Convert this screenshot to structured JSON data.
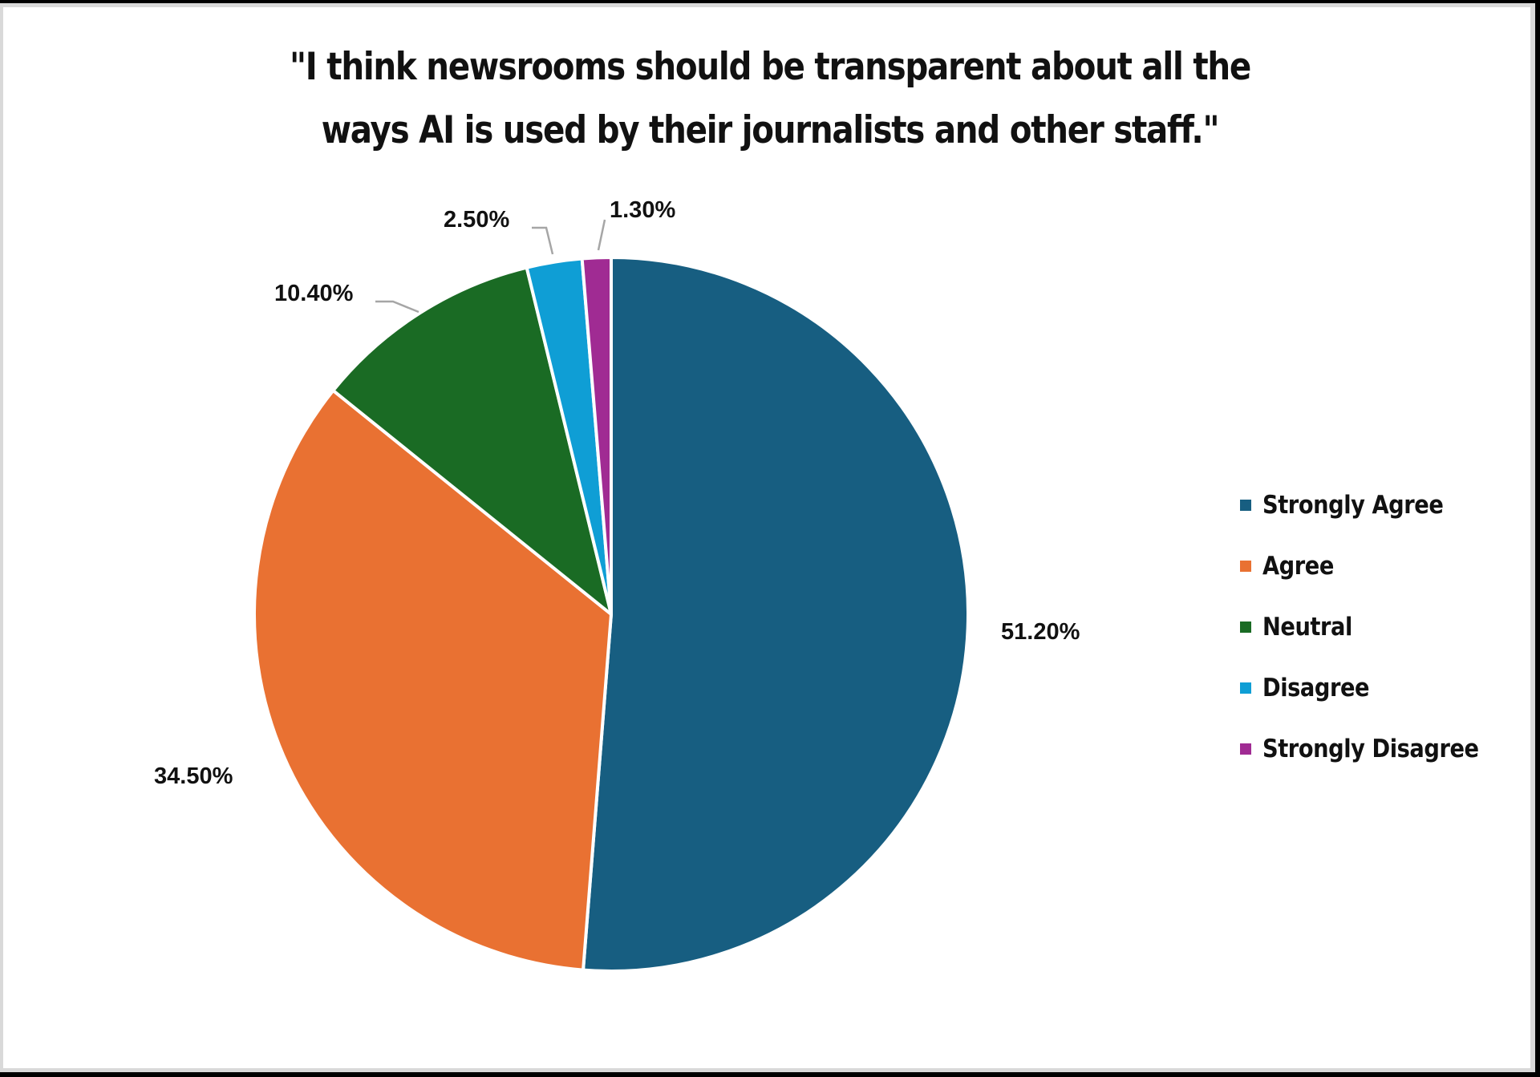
{
  "chart_data": {
    "type": "pie",
    "title": "\"I think newsrooms should be transparent about all the ways AI is used by their journalists and other staff.\"",
    "title_lines": [
      "\"I think newsrooms should be transparent about all the",
      "ways AI is used by their journalists and other staff.\""
    ],
    "categories": [
      "Strongly Agree",
      "Agree",
      "Neutral",
      "Disagree",
      "Strongly Disagree"
    ],
    "values": [
      51.2,
      34.5,
      10.4,
      2.5,
      1.3
    ],
    "labels": [
      "51.20%",
      "34.50%",
      "10.40%",
      "2.50%",
      "1.30%"
    ],
    "colors": [
      "#175e81",
      "#e97132",
      "#1a6b24",
      "#0f9ed5",
      "#a02b93"
    ],
    "start_angle_deg": 0,
    "direction": "clockwise",
    "legend_position": "right",
    "unit": "%"
  }
}
